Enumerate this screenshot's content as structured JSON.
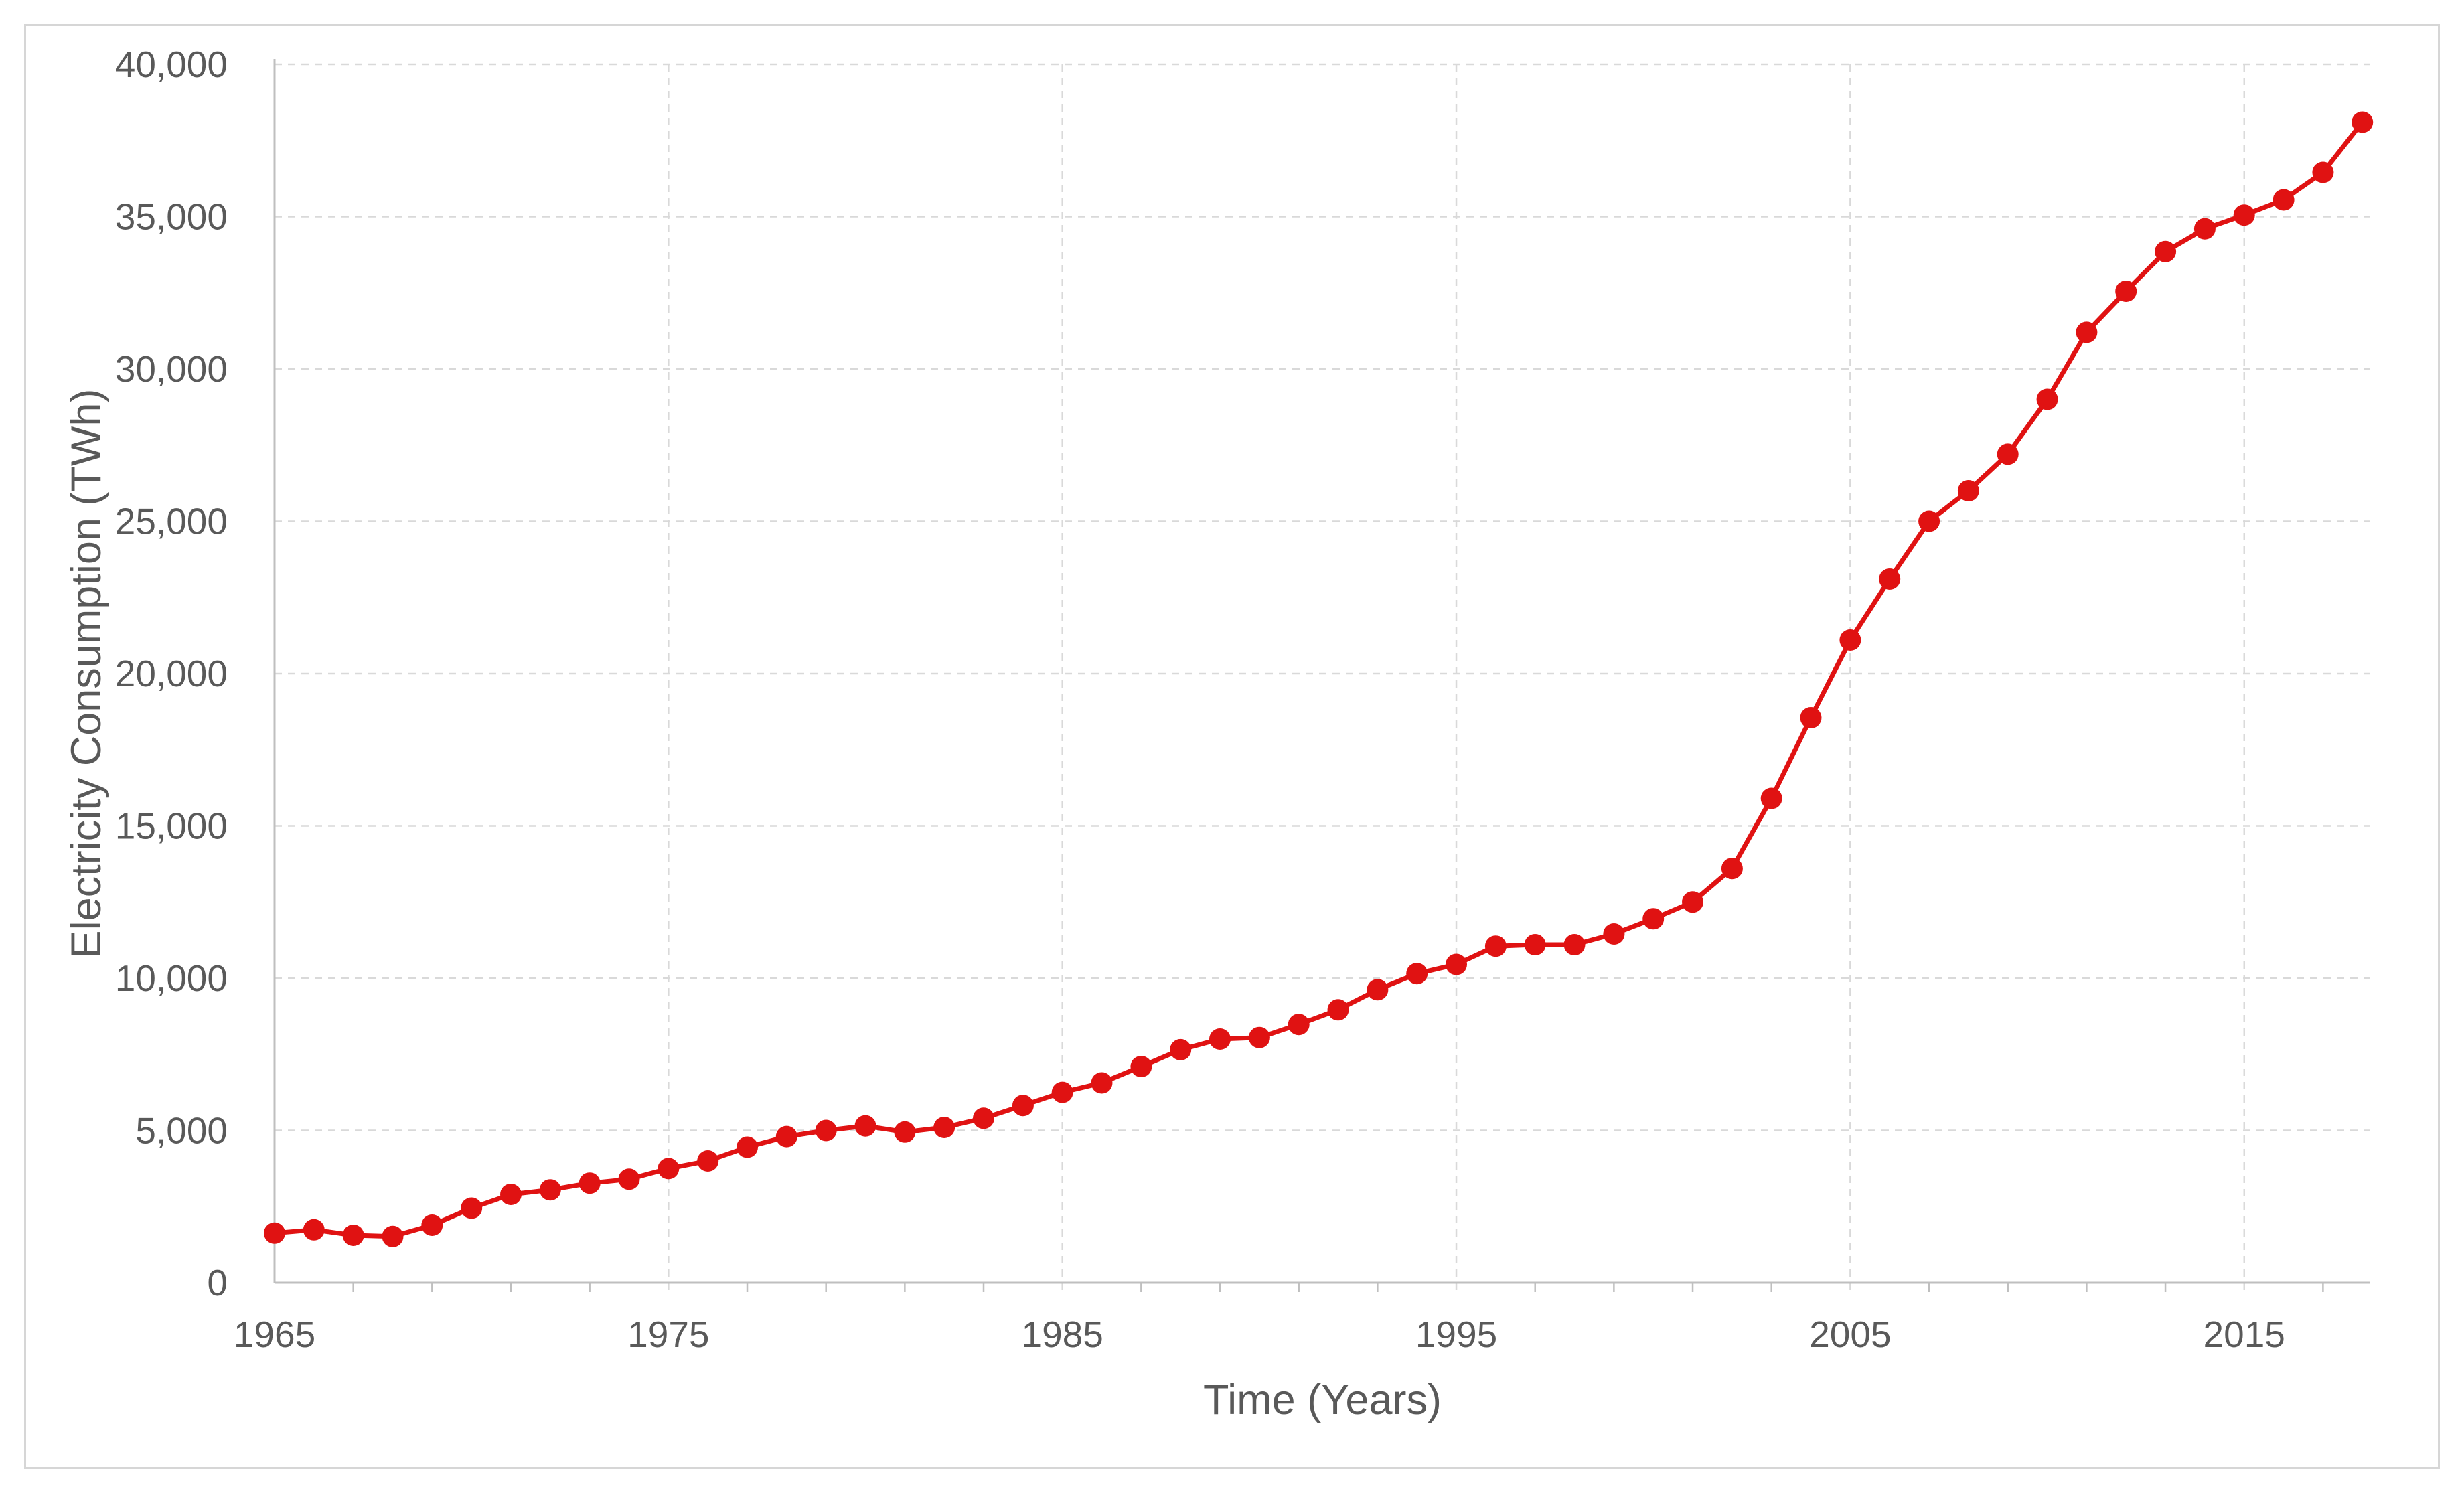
{
  "chart_data": {
    "type": "line",
    "title": "",
    "xlabel": "Time (Years)",
    "ylabel": "Electricity Consumption (TWh)",
    "series": [
      {
        "name": "Electricity Consumption",
        "x": [
          1965,
          1966,
          1967,
          1968,
          1969,
          1970,
          1971,
          1972,
          1973,
          1974,
          1975,
          1976,
          1977,
          1978,
          1979,
          1980,
          1981,
          1982,
          1983,
          1984,
          1985,
          1986,
          1987,
          1988,
          1989,
          1990,
          1991,
          1992,
          1993,
          1994,
          1995,
          1996,
          1997,
          1998,
          1999,
          2000,
          2001,
          2002,
          2003,
          2004,
          2005,
          2006,
          2007,
          2008,
          2009,
          2010,
          2011,
          2012,
          2013,
          2014,
          2015,
          2016,
          2017,
          2018
        ],
        "values": [
          1630,
          1740,
          1560,
          1520,
          1890,
          2450,
          2900,
          3050,
          3270,
          3400,
          3750,
          4000,
          4450,
          4800,
          5000,
          5150,
          4950,
          5100,
          5400,
          5820,
          6250,
          6560,
          7100,
          7650,
          8000,
          8050,
          8480,
          8960,
          9620,
          10150,
          10450,
          11050,
          11100,
          11100,
          11450,
          11950,
          12500,
          13600,
          15900,
          18550,
          21100,
          23100,
          25000,
          26000,
          27200,
          29000,
          31200,
          32550,
          33850,
          34600,
          35050,
          35550,
          36450,
          38100
        ]
      }
    ],
    "xlim": [
      1965,
      2018.2
    ],
    "ylim": [
      0,
      40000
    ],
    "yticks": [
      0,
      5000,
      10000,
      15000,
      20000,
      25000,
      30000,
      35000,
      40000
    ],
    "xticks": [
      1965,
      1975,
      1985,
      1995,
      2005,
      2015
    ],
    "minor_xticks_start": 1967,
    "minor_xticks_end": 2017,
    "minor_xticks_step": 2,
    "grid": "dashed",
    "legend_position": "none",
    "marker": "circle",
    "colors": {
      "series": "#e01212",
      "gridline": "#d9d9d9",
      "axis_line": "#bfbfbf",
      "text": "#595959"
    }
  }
}
